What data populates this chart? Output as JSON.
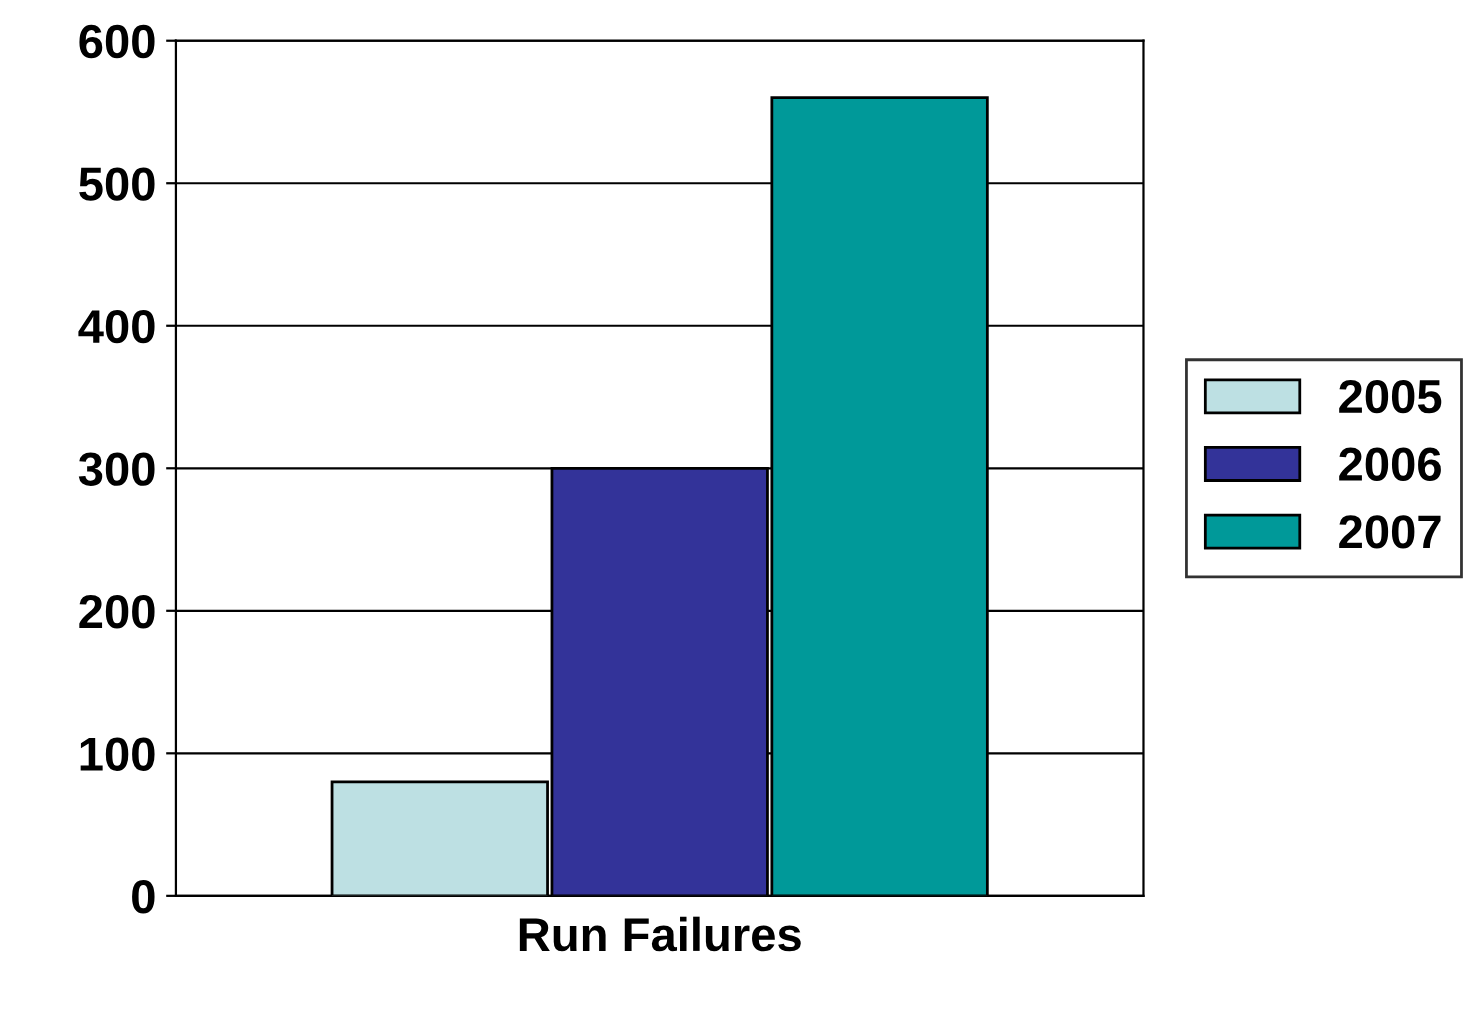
{
  "chart_data": {
    "type": "bar",
    "xlabel": "Run Failures",
    "categories": [
      null,
      null,
      null
    ],
    "series": [
      {
        "name": "2005",
        "color": "#bde0e3",
        "values": [
          80,
          null,
          null
        ]
      },
      {
        "name": "2006",
        "color": "#333399",
        "values": [
          null,
          300,
          null
        ]
      },
      {
        "name": "2007",
        "color": "#009999",
        "values": [
          null,
          null,
          560
        ]
      }
    ],
    "ylim": [
      0,
      600
    ],
    "yticks": [
      0,
      100,
      200,
      300,
      400,
      500,
      600
    ],
    "grid": "y",
    "legend": "right"
  }
}
